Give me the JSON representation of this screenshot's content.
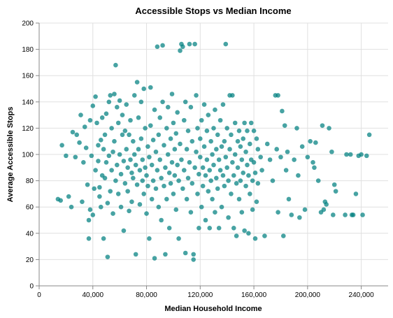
{
  "chart_data": {
    "type": "scatter",
    "title": "Accessible Stops vs Median Income",
    "xlabel": "Median Household Income",
    "ylabel": "Average Accessible Stops",
    "xlim": [
      0,
      260000
    ],
    "ylim": [
      0,
      200
    ],
    "x_ticks": [
      0,
      40000,
      80000,
      120000,
      160000,
      200000,
      240000
    ],
    "x_tick_labels": [
      "0",
      "40,000",
      "80,000",
      "120,000",
      "160,000",
      "200,000",
      "240,000"
    ],
    "y_ticks": [
      0,
      20,
      40,
      60,
      80,
      100,
      120,
      140,
      160,
      180,
      200
    ],
    "y_tick_labels": [
      "0",
      "20",
      "40",
      "60",
      "80",
      "100",
      "120",
      "140",
      "160",
      "180",
      "200"
    ],
    "grid": true,
    "legend": "none",
    "point_color": "#008080",
    "points": [
      [
        14000,
        66
      ],
      [
        16000,
        65
      ],
      [
        17000,
        107
      ],
      [
        20000,
        99
      ],
      [
        22000,
        68
      ],
      [
        24000,
        60
      ],
      [
        25000,
        117
      ],
      [
        27000,
        98
      ],
      [
        28000,
        115
      ],
      [
        30000,
        109
      ],
      [
        31000,
        130
      ],
      [
        32000,
        64
      ],
      [
        33000,
        94
      ],
      [
        34000,
        121
      ],
      [
        35000,
        105
      ],
      [
        36000,
        77
      ],
      [
        37000,
        50
      ],
      [
        37000,
        36
      ],
      [
        38000,
        58
      ],
      [
        38000,
        126
      ],
      [
        39000,
        99
      ],
      [
        40000,
        54
      ],
      [
        40000,
        137
      ],
      [
        41000,
        74
      ],
      [
        42000,
        144
      ],
      [
        42000,
        88
      ],
      [
        43000,
        124
      ],
      [
        44000,
        107
      ],
      [
        44000,
        95
      ],
      [
        45000,
        75
      ],
      [
        45000,
        68
      ],
      [
        46000,
        60
      ],
      [
        46000,
        111
      ],
      [
        47000,
        128
      ],
      [
        47000,
        84
      ],
      [
        48000,
        36
      ],
      [
        48000,
        104
      ],
      [
        49000,
        115
      ],
      [
        49000,
        82
      ],
      [
        50000,
        131
      ],
      [
        50000,
        94
      ],
      [
        51000,
        22
      ],
      [
        51000,
        63
      ],
      [
        52000,
        140
      ],
      [
        52000,
        99
      ],
      [
        53000,
        145
      ],
      [
        53000,
        72
      ],
      [
        54000,
        120
      ],
      [
        54000,
        88
      ],
      [
        55000,
        102
      ],
      [
        55000,
        55
      ],
      [
        56000,
        146
      ],
      [
        56000,
        110
      ],
      [
        57000,
        168
      ],
      [
        57000,
        80
      ],
      [
        58000,
        136
      ],
      [
        58000,
        92
      ],
      [
        59000,
        124
      ],
      [
        59000,
        70
      ],
      [
        60000,
        141
      ],
      [
        60000,
        100
      ],
      [
        61000,
        60
      ],
      [
        61000,
        85
      ],
      [
        62000,
        130
      ],
      [
        62000,
        115
      ],
      [
        63000,
        95
      ],
      [
        63000,
        42
      ],
      [
        64000,
        118
      ],
      [
        64000,
        78
      ],
      [
        65000,
        138
      ],
      [
        65000,
        104
      ],
      [
        66000,
        72
      ],
      [
        66000,
        90
      ],
      [
        67000,
        115
      ],
      [
        67000,
        57
      ],
      [
        68000,
        126
      ],
      [
        68000,
        96
      ],
      [
        69000,
        86
      ],
      [
        69000,
        64
      ],
      [
        70000,
        110
      ],
      [
        70000,
        82
      ],
      [
        71000,
        145
      ],
      [
        71000,
        100
      ],
      [
        72000,
        92
      ],
      [
        72000,
        24
      ],
      [
        73000,
        155
      ],
      [
        73000,
        77
      ],
      [
        74000,
        128
      ],
      [
        74000,
        104
      ],
      [
        75000,
        88
      ],
      [
        75000,
        62
      ],
      [
        76000,
        140
      ],
      [
        76000,
        112
      ],
      [
        77000,
        96
      ],
      [
        77000,
        80
      ],
      [
        78000,
        70
      ],
      [
        78000,
        150
      ],
      [
        79000,
        120
      ],
      [
        79000,
        90
      ],
      [
        80000,
        84
      ],
      [
        80000,
        55
      ],
      [
        81000,
        106
      ],
      [
        81000,
        76
      ],
      [
        82000,
        98
      ],
      [
        82000,
        36
      ],
      [
        83000,
        151
      ],
      [
        83000,
        122
      ],
      [
        84000,
        92
      ],
      [
        84000,
        66
      ],
      [
        85000,
        111
      ],
      [
        85000,
        80
      ],
      [
        86000,
        21
      ],
      [
        86000,
        134
      ],
      [
        87000,
        102
      ],
      [
        87000,
        74
      ],
      [
        88000,
        182
      ],
      [
        88000,
        88
      ],
      [
        89000,
        115
      ],
      [
        89000,
        60
      ],
      [
        90000,
        128
      ],
      [
        90000,
        96
      ],
      [
        91000,
        82
      ],
      [
        91000,
        50
      ],
      [
        92000,
        183
      ],
      [
        92000,
        140
      ],
      [
        93000,
        107
      ],
      [
        93000,
        76
      ],
      [
        94000,
        90
      ],
      [
        94000,
        24
      ],
      [
        95000,
        120
      ],
      [
        95000,
        66
      ],
      [
        96000,
        136
      ],
      [
        96000,
        100
      ],
      [
        97000,
        86
      ],
      [
        97000,
        44
      ],
      [
        98000,
        112
      ],
      [
        98000,
        78
      ],
      [
        99000,
        146
      ],
      [
        99000,
        94
      ],
      [
        100000,
        124
      ],
      [
        100000,
        70
      ],
      [
        101000,
        104
      ],
      [
        101000,
        84
      ],
      [
        102000,
        58
      ],
      [
        102000,
        116
      ],
      [
        103000,
        132
      ],
      [
        103000,
        92
      ],
      [
        104000,
        80
      ],
      [
        104000,
        36
      ],
      [
        105000,
        179
      ],
      [
        105000,
        108
      ],
      [
        106000,
        184
      ],
      [
        106000,
        96
      ],
      [
        107000,
        182
      ],
      [
        107000,
        74
      ],
      [
        108000,
        126
      ],
      [
        108000,
        88
      ],
      [
        109000,
        25
      ],
      [
        109000,
        140
      ],
      [
        110000,
        104
      ],
      [
        110000,
        66
      ],
      [
        111000,
        118
      ],
      [
        111000,
        82
      ],
      [
        112000,
        184
      ],
      [
        112000,
        94
      ],
      [
        113000,
        136
      ],
      [
        113000,
        56
      ],
      [
        114000,
        110
      ],
      [
        114000,
        78
      ],
      [
        115000,
        24
      ],
      [
        115000,
        20
      ],
      [
        116000,
        184
      ],
      [
        116000,
        90
      ],
      [
        117000,
        145
      ],
      [
        117000,
        102
      ],
      [
        118000,
        120
      ],
      [
        118000,
        70
      ],
      [
        119000,
        85
      ],
      [
        119000,
        44
      ],
      [
        120000,
        112
      ],
      [
        120000,
        98
      ],
      [
        121000,
        126
      ],
      [
        121000,
        60
      ],
      [
        122000,
        90
      ],
      [
        122000,
        76
      ],
      [
        123000,
        138
      ],
      [
        123000,
        106
      ],
      [
        124000,
        84
      ],
      [
        124000,
        50
      ],
      [
        125000,
        118
      ],
      [
        125000,
        96
      ],
      [
        126000,
        72
      ],
      [
        126000,
        130
      ],
      [
        127000,
        88
      ],
      [
        127000,
        44
      ],
      [
        128000,
        110
      ],
      [
        128000,
        80
      ],
      [
        129000,
        100
      ],
      [
        129000,
        66
      ],
      [
        130000,
        120
      ],
      [
        130000,
        92
      ],
      [
        131000,
        134
      ],
      [
        131000,
        56
      ],
      [
        132000,
        104
      ],
      [
        132000,
        82
      ],
      [
        133000,
        115
      ],
      [
        133000,
        74
      ],
      [
        134000,
        96
      ],
      [
        134000,
        44
      ],
      [
        135000,
        126
      ],
      [
        135000,
        88
      ],
      [
        136000,
        106
      ],
      [
        136000,
        60
      ],
      [
        137000,
        84
      ],
      [
        137000,
        138
      ],
      [
        138000,
        110
      ],
      [
        138000,
        76
      ],
      [
        139000,
        98
      ],
      [
        139000,
        184
      ],
      [
        140000,
        120
      ],
      [
        140000,
        90
      ],
      [
        141000,
        80
      ],
      [
        141000,
        52
      ],
      [
        142000,
        145
      ],
      [
        142000,
        104
      ],
      [
        143000,
        115
      ],
      [
        143000,
        70
      ],
      [
        144000,
        145
      ],
      [
        144000,
        94
      ],
      [
        145000,
        84
      ],
      [
        145000,
        44
      ],
      [
        146000,
        124
      ],
      [
        146000,
        100
      ],
      [
        147000,
        78
      ],
      [
        147000,
        38
      ],
      [
        148000,
        110
      ],
      [
        148000,
        90
      ],
      [
        149000,
        118
      ],
      [
        149000,
        66
      ],
      [
        150000,
        106
      ],
      [
        150000,
        80
      ],
      [
        151000,
        96
      ],
      [
        151000,
        56
      ],
      [
        152000,
        112
      ],
      [
        152000,
        86
      ],
      [
        153000,
        124
      ],
      [
        153000,
        42
      ],
      [
        154000,
        102
      ],
      [
        154000,
        76
      ],
      [
        155000,
        118
      ],
      [
        155000,
        92
      ],
      [
        156000,
        84
      ],
      [
        156000,
        40
      ],
      [
        157000,
        108
      ],
      [
        157000,
        70
      ],
      [
        158000,
        124
      ],
      [
        158000,
        96
      ],
      [
        159000,
        80
      ],
      [
        159000,
        58
      ],
      [
        160000,
        118
      ],
      [
        160000,
        94
      ],
      [
        161000,
        86
      ],
      [
        161000,
        36
      ],
      [
        162000,
        112
      ],
      [
        162000,
        64
      ],
      [
        163000,
        104
      ],
      [
        163000,
        78
      ],
      [
        165000,
        98
      ],
      [
        166000,
        88
      ],
      [
        168000,
        38
      ],
      [
        170000,
        108
      ],
      [
        172000,
        96
      ],
      [
        174000,
        80
      ],
      [
        176000,
        145
      ],
      [
        177000,
        104
      ],
      [
        178000,
        145
      ],
      [
        178000,
        56
      ],
      [
        180000,
        98
      ],
      [
        181000,
        133
      ],
      [
        182000,
        38
      ],
      [
        183000,
        122
      ],
      [
        184000,
        88
      ],
      [
        185000,
        102
      ],
      [
        186000,
        66
      ],
      [
        188000,
        54
      ],
      [
        190000,
        96
      ],
      [
        192000,
        120
      ],
      [
        193000,
        84
      ],
      [
        194000,
        52
      ],
      [
        196000,
        106
      ],
      [
        198000,
        58
      ],
      [
        200000,
        98
      ],
      [
        202000,
        110
      ],
      [
        204000,
        94
      ],
      [
        205000,
        90
      ],
      [
        206000,
        109
      ],
      [
        208000,
        80
      ],
      [
        210000,
        56
      ],
      [
        211000,
        122
      ],
      [
        212000,
        58
      ],
      [
        213000,
        64
      ],
      [
        214000,
        62
      ],
      [
        216000,
        120
      ],
      [
        218000,
        102
      ],
      [
        219000,
        54
      ],
      [
        220000,
        77
      ],
      [
        221000,
        72
      ],
      [
        228000,
        54
      ],
      [
        229000,
        100
      ],
      [
        232000,
        100
      ],
      [
        233000,
        54
      ],
      [
        234000,
        54
      ],
      [
        236000,
        70
      ],
      [
        238000,
        99
      ],
      [
        240000,
        100
      ],
      [
        241000,
        54
      ],
      [
        244000,
        99
      ],
      [
        246000,
        115
      ]
    ]
  }
}
